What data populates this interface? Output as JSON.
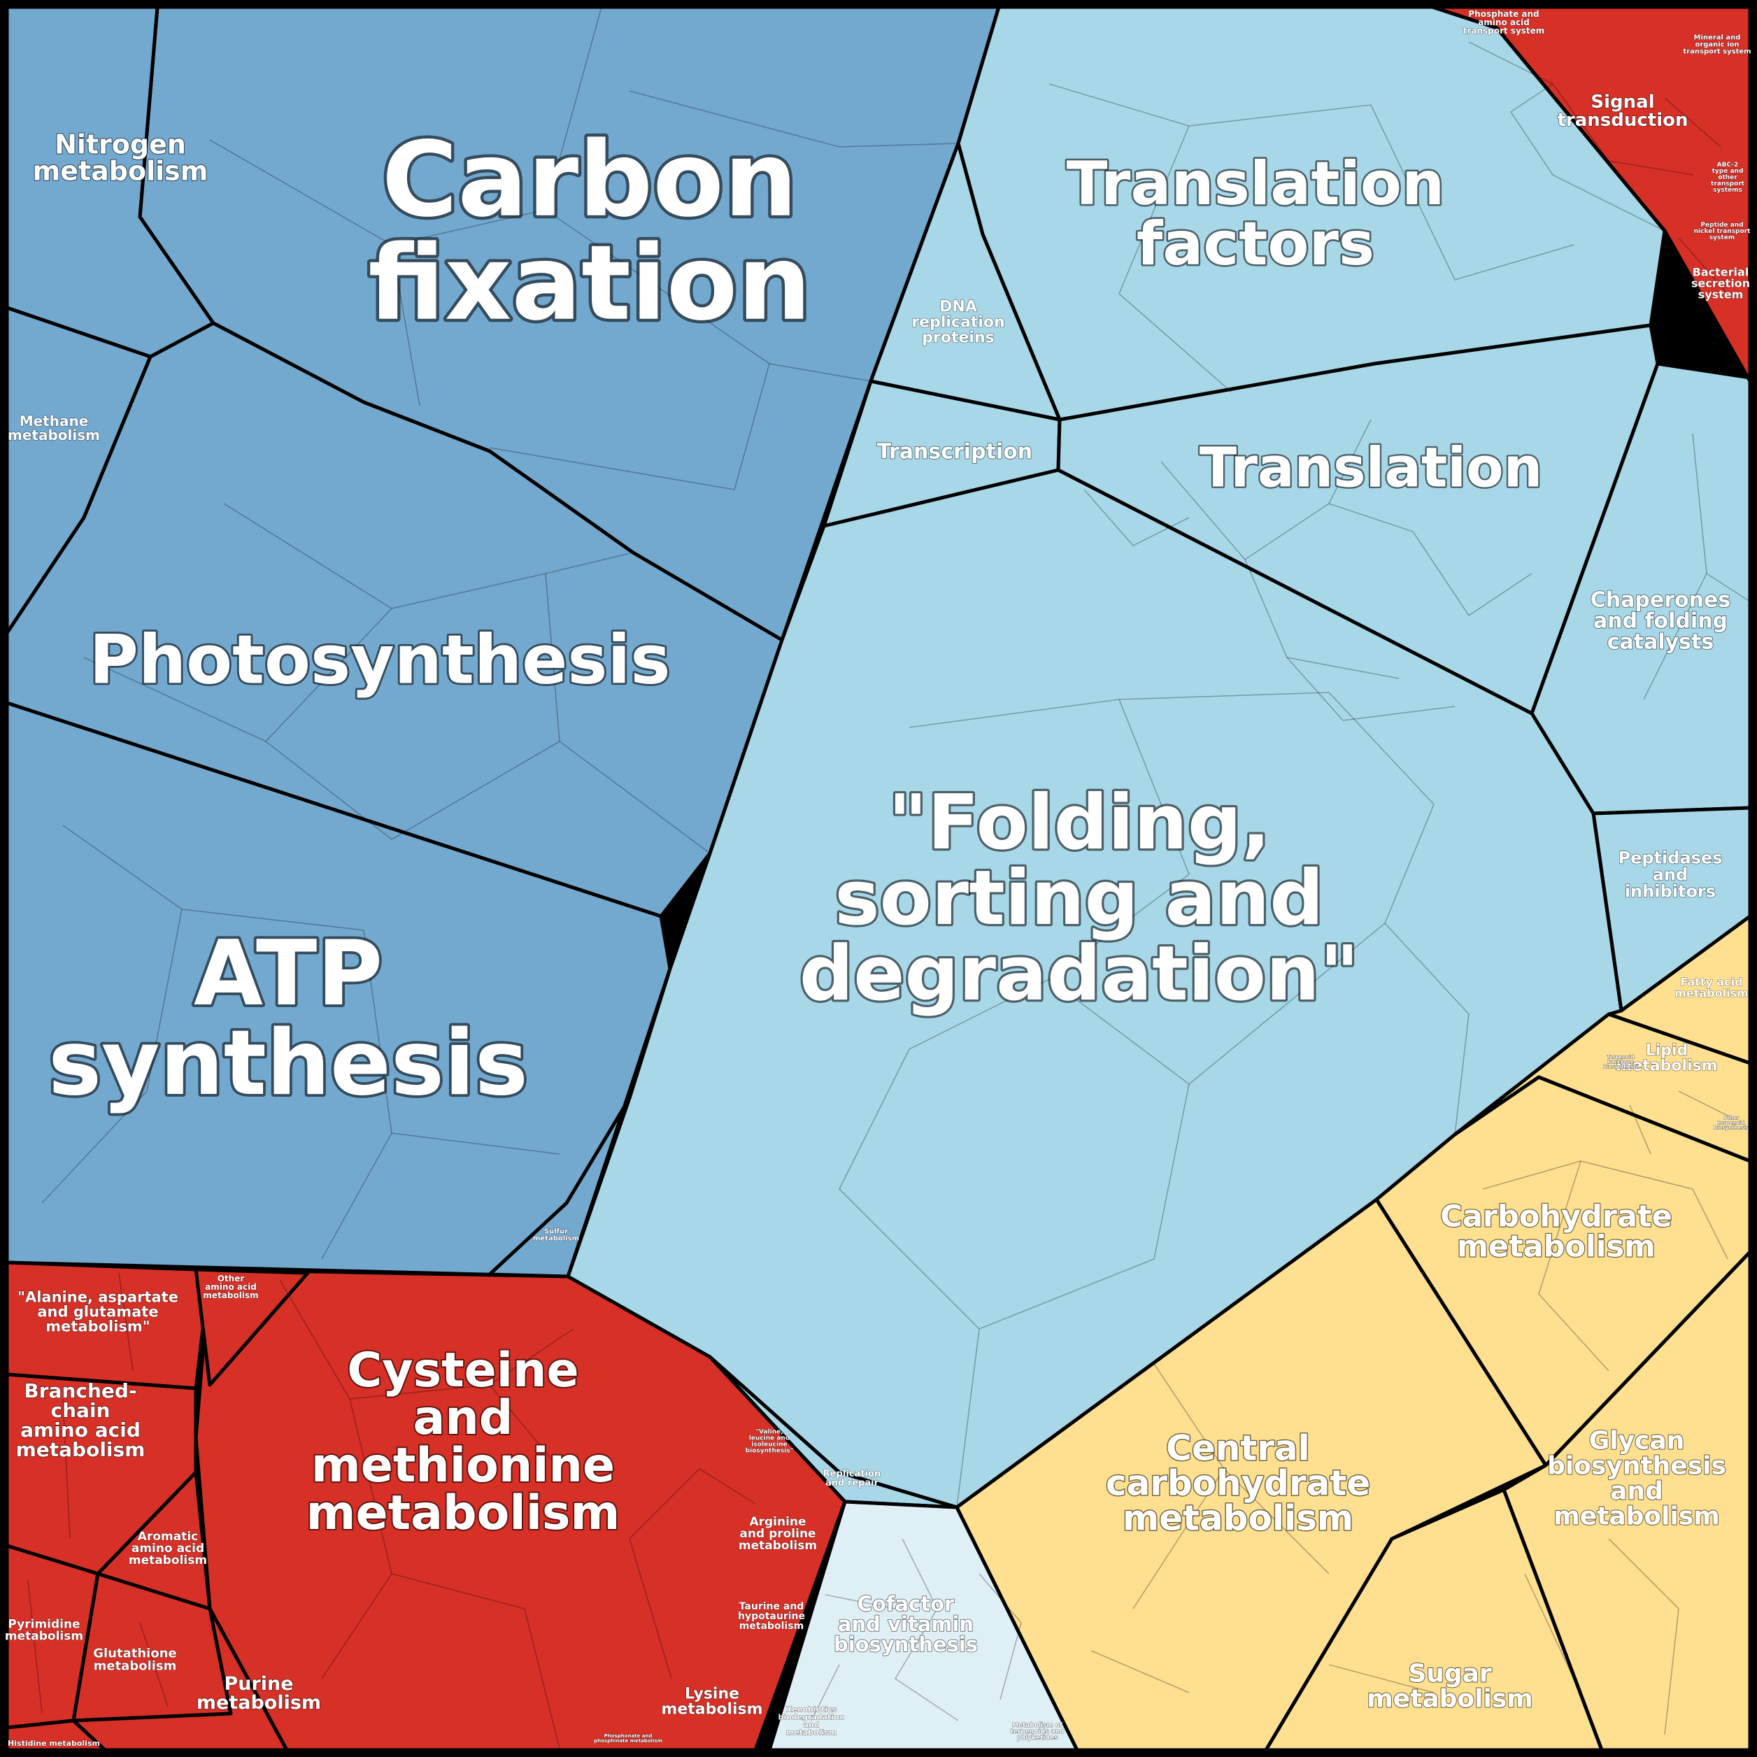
{
  "chart_data": {
    "type": "voronoi-treemap",
    "palette": {
      "blue": "#74a9cf",
      "light_blue": "#a8d8e8",
      "pale_blue": "#def0f6",
      "red": "#d73027",
      "yellow": "#fee090"
    },
    "cells": [
      {
        "id": "carbon-fixation",
        "group": "blue",
        "label": [
          "Carbon",
          "fixation"
        ]
      },
      {
        "id": "nitrogen-metabolism",
        "group": "blue",
        "label": [
          "Nitrogen",
          "metabolism"
        ]
      },
      {
        "id": "methane-metabolism",
        "group": "blue",
        "label": [
          "Methane",
          "metabolism"
        ]
      },
      {
        "id": "photosynthesis",
        "group": "blue",
        "label": [
          "Photosynthesis"
        ]
      },
      {
        "id": "atp-synthesis",
        "group": "blue",
        "label": [
          "ATP",
          "synthesis"
        ]
      },
      {
        "id": "sulfur-metabolism",
        "group": "blue",
        "label": [
          "Sulfur",
          "metabolism"
        ]
      },
      {
        "id": "translation-factors",
        "group": "light_blue",
        "label": [
          "Translation",
          "factors"
        ]
      },
      {
        "id": "dna-replication-proteins",
        "group": "light_blue",
        "label": [
          "DNA",
          "replication",
          "proteins"
        ]
      },
      {
        "id": "transcription",
        "group": "light_blue",
        "label": [
          "Transcription"
        ]
      },
      {
        "id": "translation",
        "group": "light_blue",
        "label": [
          "Translation"
        ]
      },
      {
        "id": "chaperones",
        "group": "light_blue",
        "label": [
          "Chaperones",
          "and folding",
          "catalysts"
        ]
      },
      {
        "id": "peptidases",
        "group": "light_blue",
        "label": [
          "Peptidases",
          "and",
          "inhibitors"
        ]
      },
      {
        "id": "folding-sorting",
        "group": "light_blue",
        "label": [
          "\"Folding,",
          "sorting and",
          "degradation\""
        ]
      },
      {
        "id": "replication-repair",
        "group": "light_blue",
        "label": [
          "Replication",
          "and repair"
        ]
      },
      {
        "id": "signal-transduction",
        "group": "red",
        "label": [
          "Signal",
          "transduction"
        ]
      },
      {
        "id": "phosphate-transport",
        "group": "red",
        "label": [
          "Phosphate and",
          "amino acid",
          "transport system"
        ]
      },
      {
        "id": "mineral-transport",
        "group": "red",
        "label": [
          "Mineral and",
          "organic ion",
          "transport system"
        ]
      },
      {
        "id": "abc2-transport",
        "group": "red",
        "label": [
          "ABC-2",
          "type and",
          "other",
          "transport",
          "systems"
        ]
      },
      {
        "id": "peptide-nickel",
        "group": "red",
        "label": [
          "Peptide and",
          "nickel transport",
          "system"
        ]
      },
      {
        "id": "bacterial-secretion",
        "group": "red",
        "label": [
          "Bacterial",
          "secretion",
          "system"
        ]
      },
      {
        "id": "cysteine-methionine",
        "group": "red",
        "label": [
          "Cysteine",
          "and",
          "methionine",
          "metabolism"
        ]
      },
      {
        "id": "alanine-aspartate",
        "group": "red",
        "label": [
          "\"Alanine, aspartate",
          "and glutamate",
          "metabolism\""
        ]
      },
      {
        "id": "other-amino-acid",
        "group": "red",
        "label": [
          "Other",
          "amino acid",
          "metabolism"
        ]
      },
      {
        "id": "branched-chain",
        "group": "red",
        "label": [
          "Branched-",
          "chain",
          "amino acid",
          "metabolism"
        ]
      },
      {
        "id": "aromatic-amino-acid",
        "group": "red",
        "label": [
          "Aromatic",
          "amino acid",
          "metabolism"
        ]
      },
      {
        "id": "pyrimidine",
        "group": "red",
        "label": [
          "Pyrimidine",
          "metabolism"
        ]
      },
      {
        "id": "glutathione",
        "group": "red",
        "label": [
          "Glutathione",
          "metabolism"
        ]
      },
      {
        "id": "purine",
        "group": "red",
        "label": [
          "Purine",
          "metabolism"
        ]
      },
      {
        "id": "histidine",
        "group": "red",
        "label": [
          "Histidine metabolism"
        ]
      },
      {
        "id": "valine-leucine",
        "group": "red",
        "label": [
          "\"Valine,",
          "leucine and",
          "isoleucine",
          "biosynthesis\""
        ]
      },
      {
        "id": "arginine-proline",
        "group": "red",
        "label": [
          "Arginine",
          "and proline",
          "metabolism"
        ]
      },
      {
        "id": "taurine",
        "group": "red",
        "label": [
          "Taurine and",
          "hypotaurine",
          "metabolism"
        ]
      },
      {
        "id": "lysine",
        "group": "red",
        "label": [
          "Lysine",
          "metabolism"
        ]
      },
      {
        "id": "phosphonate",
        "group": "red",
        "label": [
          "Phosphonate and",
          "phosphinate metabolism"
        ]
      },
      {
        "id": "cofactor-vitamin",
        "group": "pale_blue",
        "label": [
          "Cofactor",
          "and vitamin",
          "biosynthesis"
        ]
      },
      {
        "id": "xenobiotics",
        "group": "pale_blue",
        "label": [
          "Xenobiotics",
          "biodegradation",
          "and",
          "metabolism"
        ]
      },
      {
        "id": "terpenoids",
        "group": "pale_blue",
        "label": [
          "Metabolism of",
          "terpenoids and",
          "polyketides"
        ]
      },
      {
        "id": "fatty-acid",
        "group": "yellow",
        "label": [
          "Fatty acid",
          "metabolism"
        ]
      },
      {
        "id": "lipid",
        "group": "yellow",
        "label": [
          "Lipid",
          "metabolism"
        ]
      },
      {
        "id": "terpenoid-backbone",
        "group": "yellow",
        "label": [
          "Terpenoid",
          "backbone",
          "biosynthesis"
        ]
      },
      {
        "id": "other-terpenoid",
        "group": "yellow",
        "label": [
          "Other",
          "terpenoid",
          "biosynthesis"
        ]
      },
      {
        "id": "carbohydrate",
        "group": "yellow",
        "label": [
          "Carbohydrate",
          "metabolism"
        ]
      },
      {
        "id": "central-carbohydrate",
        "group": "yellow",
        "label": [
          "Central",
          "carbohydrate",
          "metabolism"
        ]
      },
      {
        "id": "glycan",
        "group": "yellow",
        "label": [
          "Glycan",
          "biosynthesis",
          "and",
          "metabolism"
        ]
      },
      {
        "id": "sugar",
        "group": "yellow",
        "label": [
          "Sugar",
          "metabolism"
        ]
      }
    ]
  }
}
